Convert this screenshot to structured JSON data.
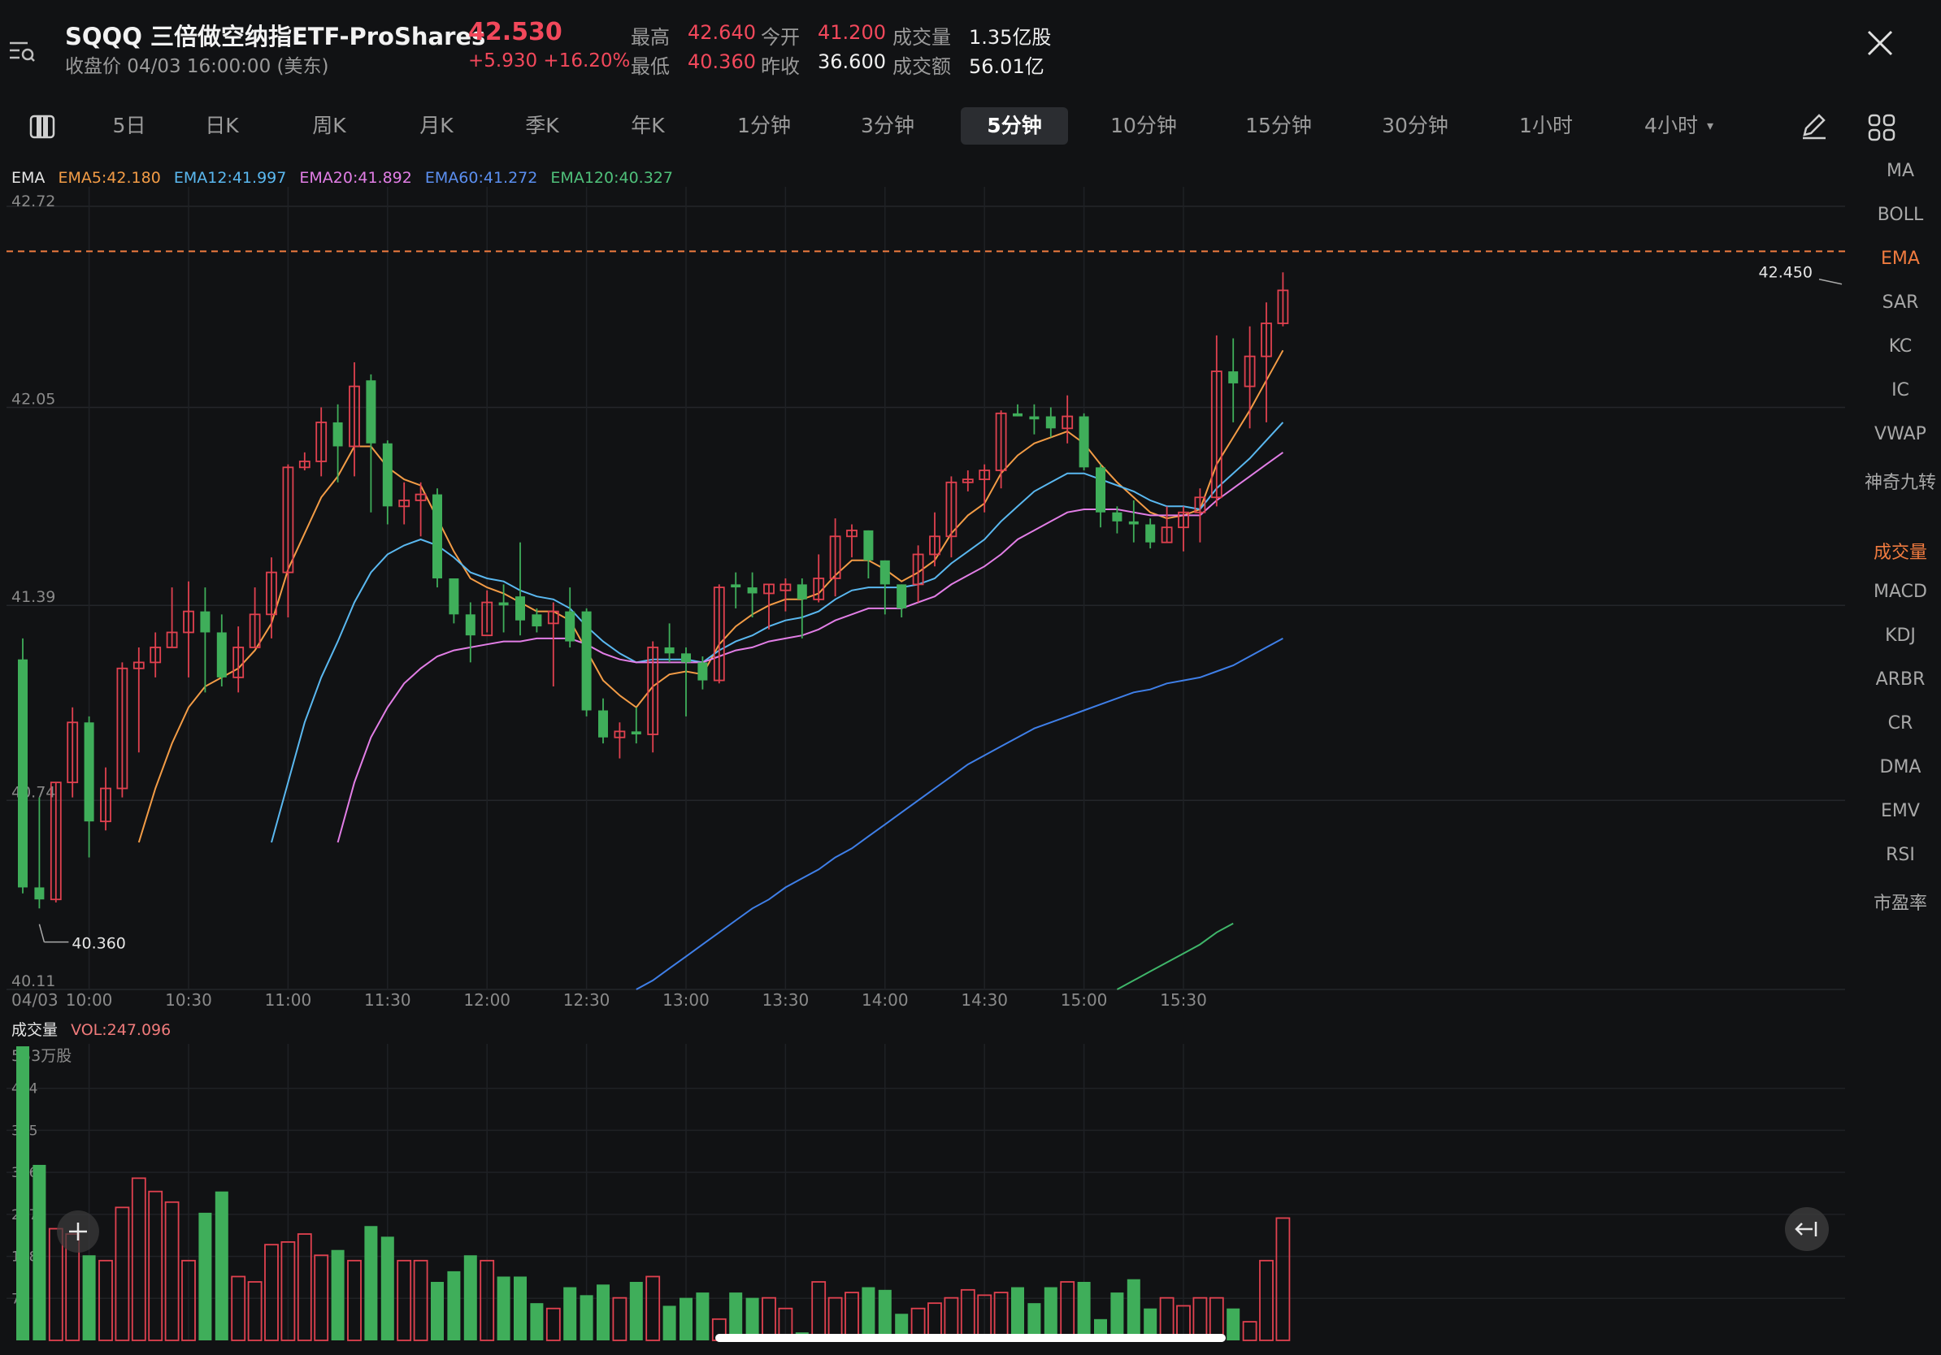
{
  "header": {
    "symbol_name": "SQQQ 三倍做空纳指ETF-ProShares",
    "price": "42.530",
    "close_time": "收盘价 04/03 16:00:00 (美东)",
    "change": "+5.930 +16.20%",
    "stats": [
      {
        "label": "最高",
        "value": "42.640",
        "color": "red"
      },
      {
        "label": "今开",
        "value": "41.200",
        "color": "red"
      },
      {
        "label": "成交量",
        "value": "1.35亿股",
        "color": "white"
      },
      {
        "label": "最低",
        "value": "40.360",
        "color": "red"
      },
      {
        "label": "昨收",
        "value": "36.600",
        "color": "white"
      },
      {
        "label": "成交额",
        "value": "56.01亿",
        "color": "white"
      }
    ]
  },
  "tabs": [
    "5日",
    "日K",
    "周K",
    "月K",
    "季K",
    "年K",
    "1分钟",
    "3分钟",
    "5分钟",
    "10分钟",
    "15分钟",
    "30分钟",
    "1小时",
    "4小时"
  ],
  "active_tab": "5分钟",
  "side_indicators": [
    "MA",
    "BOLL",
    "EMA",
    "SAR",
    "KC",
    "IC",
    "VWAP",
    "神奇九转"
  ],
  "side_sub_indicators": [
    "成交量",
    "MACD",
    "KDJ",
    "ARBR",
    "CR",
    "DMA",
    "EMV",
    "RSI",
    "市盈率"
  ],
  "active_indicator": "EMA",
  "active_sub_indicator": "成交量",
  "ema_legend": {
    "name": "EMA",
    "items": [
      {
        "label": "EMA5:42.180",
        "color": "#f39c46"
      },
      {
        "label": "EMA12:41.997",
        "color": "#5ab8f0"
      },
      {
        "label": "EMA20:41.892",
        "color": "#e27ee6"
      },
      {
        "label": "EMA60:41.272",
        "color": "#3f7fe8"
      },
      {
        "label": "EMA120:40.327",
        "color": "#3fb66a"
      }
    ]
  },
  "volume_legend": {
    "name": "成交量",
    "value": "VOL:247.096"
  },
  "colors": {
    "up": "#e0414f",
    "down": "#3fae5a",
    "bg": "#111214",
    "accent": "#f07b3f"
  },
  "chart_data": {
    "type": "candlestick",
    "date_label": "04/03",
    "price_axis": {
      "ticks": [
        "42.72",
        "42.05",
        "41.39",
        "40.74",
        "40.11"
      ],
      "ylim": [
        40.11,
        42.72
      ]
    },
    "time_ticks": [
      "10:00",
      "10:30",
      "11:00",
      "11:30",
      "12:00",
      "12:30",
      "13:00",
      "13:30",
      "14:00",
      "14:30",
      "15:00",
      "15:30"
    ],
    "annotations": {
      "high_label": "42.450",
      "low_label": "40.360",
      "dashed_line_value": 42.57
    },
    "candles": [
      [
        41.21,
        40.45,
        41.28,
        40.43
      ],
      [
        40.45,
        40.41,
        40.75,
        40.38
      ],
      [
        40.41,
        40.8,
        40.8,
        40.4
      ],
      [
        40.8,
        41.0,
        41.05,
        40.75
      ],
      [
        41.0,
        40.67,
        41.02,
        40.55
      ],
      [
        40.67,
        40.78,
        40.85,
        40.64
      ],
      [
        40.78,
        41.18,
        41.2,
        40.75
      ],
      [
        41.18,
        41.2,
        41.25,
        40.9
      ],
      [
        41.2,
        41.25,
        41.3,
        41.15
      ],
      [
        41.25,
        41.3,
        41.45,
        41.25
      ],
      [
        41.3,
        41.37,
        41.47,
        41.15
      ],
      [
        41.37,
        41.3,
        41.45,
        41.1
      ],
      [
        41.3,
        41.15,
        41.36,
        41.12
      ],
      [
        41.15,
        41.25,
        41.32,
        41.1
      ],
      [
        41.25,
        41.36,
        41.45,
        41.25
      ],
      [
        41.36,
        41.5,
        41.55,
        41.28
      ],
      [
        41.5,
        41.85,
        41.86,
        41.35
      ],
      [
        41.85,
        41.87,
        41.9,
        41.84
      ],
      [
        41.87,
        42.0,
        42.05,
        41.82
      ],
      [
        42.0,
        41.92,
        42.06,
        41.8
      ],
      [
        41.92,
        42.12,
        42.2,
        41.82
      ],
      [
        42.14,
        41.93,
        42.16,
        41.7
      ],
      [
        41.93,
        41.72,
        41.94,
        41.66
      ],
      [
        41.72,
        41.74,
        41.8,
        41.66
      ],
      [
        41.74,
        41.76,
        41.8,
        41.62
      ],
      [
        41.76,
        41.48,
        41.78,
        41.45
      ],
      [
        41.48,
        41.36,
        41.48,
        41.33
      ],
      [
        41.36,
        41.29,
        41.4,
        41.2
      ],
      [
        41.29,
        41.4,
        41.44,
        41.3
      ],
      [
        41.4,
        41.39,
        41.46,
        41.3
      ],
      [
        41.42,
        41.34,
        41.6,
        41.29
      ],
      [
        41.36,
        41.32,
        41.38,
        41.3
      ],
      [
        41.33,
        41.37,
        41.4,
        41.12
      ],
      [
        41.37,
        41.27,
        41.45,
        41.25
      ],
      [
        41.37,
        41.04,
        41.38,
        41.02
      ],
      [
        41.04,
        40.95,
        41.08,
        40.93
      ],
      [
        40.95,
        40.97,
        41.0,
        40.88
      ],
      [
        40.97,
        40.96,
        41.05,
        40.93
      ],
      [
        40.96,
        41.25,
        41.27,
        40.9
      ],
      [
        41.25,
        41.23,
        41.33,
        41.2
      ],
      [
        41.23,
        41.2,
        41.25,
        41.02
      ],
      [
        41.2,
        41.14,
        41.22,
        41.11
      ],
      [
        41.14,
        41.45,
        41.46,
        41.13
      ],
      [
        41.46,
        41.45,
        41.5,
        41.38
      ],
      [
        41.45,
        41.43,
        41.5,
        41.35
      ],
      [
        41.43,
        41.46,
        41.46,
        41.31
      ],
      [
        41.44,
        41.46,
        41.48,
        41.37
      ],
      [
        41.46,
        41.41,
        41.48,
        41.28
      ],
      [
        41.41,
        41.48,
        41.56,
        41.4
      ],
      [
        41.48,
        41.62,
        41.68,
        41.42
      ],
      [
        41.62,
        41.64,
        41.66,
        41.55
      ],
      [
        41.64,
        41.54,
        41.64,
        41.48
      ],
      [
        41.54,
        41.46,
        41.54,
        41.36
      ],
      [
        41.46,
        41.38,
        41.46,
        41.35
      ],
      [
        41.46,
        41.56,
        41.59,
        41.4
      ],
      [
        41.56,
        41.62,
        41.7,
        41.52
      ],
      [
        41.62,
        41.8,
        41.82,
        41.55
      ],
      [
        41.8,
        41.81,
        41.84,
        41.77
      ],
      [
        41.81,
        41.84,
        41.86,
        41.7
      ],
      [
        41.84,
        42.03,
        42.04,
        41.78
      ],
      [
        42.03,
        42.02,
        42.06,
        42.02
      ],
      [
        42.02,
        42.01,
        42.06,
        41.96
      ],
      [
        42.02,
        41.98,
        42.05,
        41.95
      ],
      [
        41.98,
        42.02,
        42.09,
        41.93
      ],
      [
        42.02,
        41.85,
        42.03,
        41.84
      ],
      [
        41.85,
        41.7,
        41.86,
        41.65
      ],
      [
        41.7,
        41.67,
        41.72,
        41.63
      ],
      [
        41.67,
        41.66,
        41.74,
        41.6
      ],
      [
        41.66,
        41.6,
        41.68,
        41.58
      ],
      [
        41.6,
        41.65,
        41.72,
        41.6
      ],
      [
        41.65,
        41.7,
        41.72,
        41.57
      ],
      [
        41.7,
        41.75,
        41.78,
        41.6
      ],
      [
        41.75,
        42.17,
        42.29,
        41.72
      ],
      [
        42.17,
        42.13,
        42.28,
        42.0
      ],
      [
        42.12,
        42.22,
        42.32,
        41.98
      ],
      [
        42.22,
        42.33,
        42.4,
        42.0
      ],
      [
        42.33,
        42.44,
        42.5,
        42.32
      ]
    ],
    "ema": {
      "EMA5": [
        null,
        null,
        null,
        null,
        null,
        null,
        null,
        40.6,
        40.78,
        40.93,
        41.05,
        41.12,
        41.15,
        41.18,
        41.24,
        41.33,
        41.51,
        41.63,
        41.75,
        41.82,
        41.92,
        41.92,
        41.85,
        41.81,
        41.79,
        41.68,
        41.57,
        41.48,
        41.45,
        41.43,
        41.4,
        41.37,
        41.37,
        41.34,
        41.24,
        41.14,
        41.09,
        41.05,
        41.12,
        41.16,
        41.17,
        41.16,
        41.26,
        41.32,
        41.36,
        41.39,
        41.41,
        41.41,
        41.43,
        41.49,
        41.54,
        41.54,
        41.51,
        41.47,
        41.5,
        41.54,
        41.63,
        41.69,
        41.73,
        41.83,
        41.89,
        41.93,
        41.95,
        41.97,
        41.93,
        41.86,
        41.8,
        41.75,
        41.7,
        41.68,
        41.69,
        41.71,
        41.86,
        41.95,
        42.04,
        42.14,
        42.24
      ],
      "EMA12": [
        null,
        null,
        null,
        null,
        null,
        null,
        null,
        null,
        null,
        null,
        null,
        null,
        null,
        null,
        null,
        40.6,
        40.8,
        41.0,
        41.15,
        41.27,
        41.4,
        41.5,
        41.56,
        41.59,
        41.61,
        41.59,
        41.55,
        41.5,
        41.48,
        41.47,
        41.44,
        41.42,
        41.41,
        41.38,
        41.32,
        41.27,
        41.23,
        41.2,
        41.21,
        41.21,
        41.21,
        41.2,
        41.24,
        41.27,
        41.29,
        41.32,
        41.34,
        41.35,
        41.37,
        41.41,
        41.44,
        41.45,
        41.45,
        41.45,
        41.46,
        41.48,
        41.53,
        41.57,
        41.61,
        41.67,
        41.72,
        41.77,
        41.8,
        41.83,
        41.83,
        41.81,
        41.79,
        41.77,
        41.74,
        41.72,
        41.72,
        41.71,
        41.78,
        41.83,
        41.88,
        41.94,
        42.0
      ],
      "EMA20": [
        null,
        null,
        null,
        null,
        null,
        null,
        null,
        null,
        null,
        null,
        null,
        null,
        null,
        null,
        null,
        null,
        null,
        null,
        null,
        40.6,
        40.8,
        40.95,
        41.05,
        41.13,
        41.18,
        41.22,
        41.24,
        41.25,
        41.26,
        41.27,
        41.27,
        41.28,
        41.28,
        41.28,
        41.26,
        41.23,
        41.21,
        41.2,
        41.2,
        41.2,
        41.2,
        41.2,
        41.22,
        41.24,
        41.25,
        41.27,
        41.28,
        41.29,
        41.31,
        41.34,
        41.36,
        41.38,
        41.38,
        41.38,
        41.4,
        41.42,
        41.46,
        41.49,
        41.52,
        41.56,
        41.61,
        41.64,
        41.67,
        41.7,
        41.71,
        41.71,
        41.71,
        41.7,
        41.69,
        41.69,
        41.69,
        41.69,
        41.74,
        41.78,
        41.82,
        41.86,
        41.9
      ],
      "EMA60": [
        null,
        null,
        null,
        null,
        null,
        null,
        null,
        null,
        null,
        null,
        null,
        null,
        null,
        null,
        null,
        null,
        null,
        null,
        null,
        null,
        null,
        null,
        null,
        null,
        null,
        null,
        null,
        null,
        null,
        null,
        null,
        null,
        null,
        null,
        null,
        null,
        null,
        40.11,
        40.14,
        40.18,
        40.22,
        40.26,
        40.3,
        40.34,
        40.38,
        40.41,
        40.45,
        40.48,
        40.51,
        40.55,
        40.58,
        40.62,
        40.66,
        40.7,
        40.74,
        40.78,
        40.82,
        40.86,
        40.89,
        40.92,
        40.95,
        40.98,
        41.0,
        41.02,
        41.04,
        41.06,
        41.08,
        41.1,
        41.11,
        41.13,
        41.14,
        41.15,
        41.17,
        41.19,
        41.22,
        41.25,
        41.28
      ],
      "EMA120": [
        null,
        null,
        null,
        null,
        null,
        null,
        null,
        null,
        null,
        null,
        null,
        null,
        null,
        null,
        null,
        null,
        null,
        null,
        null,
        null,
        null,
        null,
        null,
        null,
        null,
        null,
        null,
        null,
        null,
        null,
        null,
        null,
        null,
        null,
        null,
        null,
        null,
        null,
        null,
        null,
        null,
        null,
        null,
        null,
        null,
        null,
        null,
        null,
        null,
        null,
        null,
        null,
        null,
        null,
        null,
        null,
        null,
        null,
        null,
        null,
        null,
        null,
        null,
        null,
        null,
        null,
        40.11,
        40.14,
        40.17,
        40.2,
        40.23,
        40.26,
        40.3,
        40.33
      ]
    },
    "volume": {
      "unit_label": "553万股",
      "ticks": [
        "474",
        "395",
        "316",
        "237",
        "158",
        "79"
      ],
      "ylim": [
        0,
        553
      ],
      "values": [
        553,
        330,
        210,
        200,
        160,
        150,
        250,
        305,
        280,
        260,
        150,
        240,
        280,
        120,
        110,
        180,
        185,
        200,
        160,
        170,
        150,
        215,
        195,
        150,
        150,
        110,
        130,
        160,
        150,
        120,
        120,
        70,
        60,
        100,
        85,
        105,
        80,
        110,
        120,
        65,
        80,
        90,
        40,
        90,
        80,
        80,
        60,
        15,
        110,
        80,
        90,
        100,
        95,
        50,
        60,
        70,
        80,
        95,
        85,
        90,
        100,
        70,
        100,
        110,
        110,
        40,
        90,
        115,
        60,
        80,
        65,
        80,
        80,
        60,
        35,
        150,
        230
      ]
    }
  }
}
